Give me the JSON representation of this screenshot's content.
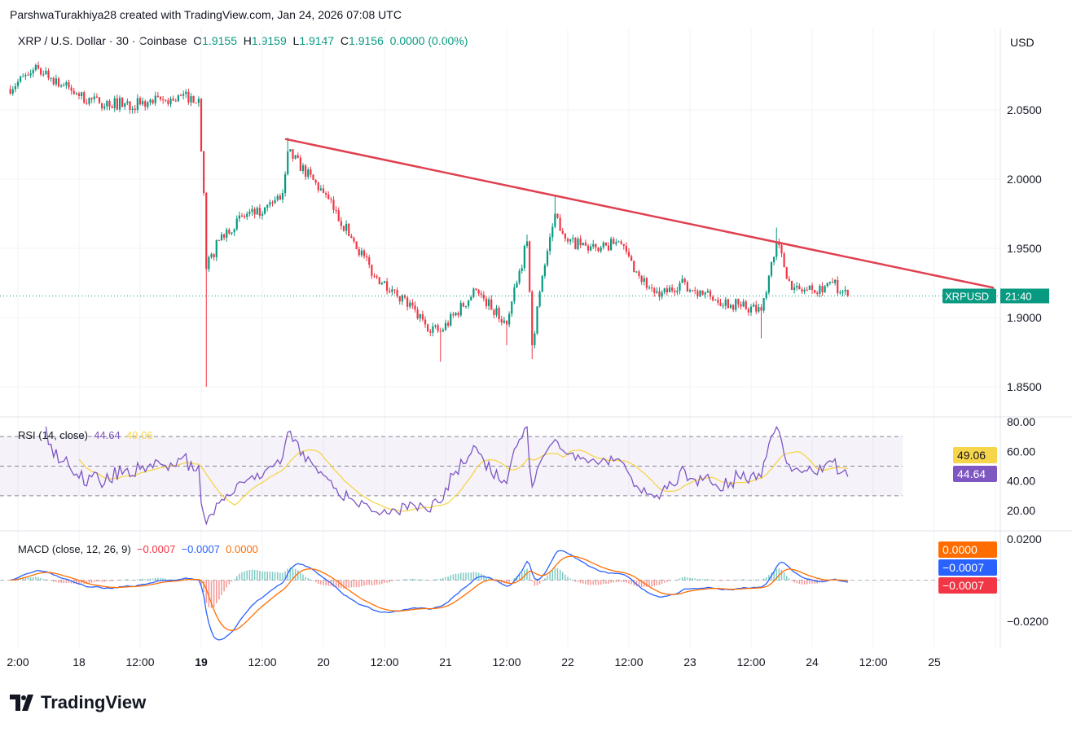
{
  "header": {
    "credit": "ParshwaTurakhiya28 created with TradingView.com, Jan 24, 2026 07:08 UTC",
    "symbol": "XRP / U.S. Dollar · 30 · Coinbase",
    "o_label": "O",
    "o": "1.9155",
    "h_label": "H",
    "h": "1.9159",
    "l_label": "L",
    "l": "1.9147",
    "c_label": "C",
    "c": "1.9156",
    "change": "0.0000 (0.00%)"
  },
  "currency": "USD",
  "colors": {
    "up": "#089981",
    "down": "#f23645",
    "trendline": "#e0404f",
    "rsi": "#7e57c2",
    "rsi_ma": "#f7d54a",
    "macd": "#2962ff",
    "signal": "#ff6d00"
  },
  "symbol_tag": "XRPUSD",
  "countdown": "21:40",
  "logo": "TradingView",
  "rsi": {
    "label": "RSI (14, close)",
    "value": "44.64",
    "ma_value": "49.06"
  },
  "macd": {
    "label": "MACD (close, 12, 26, 9)",
    "hist": "−0.0007",
    "macd": "−0.0007",
    "signal": "0.0000"
  },
  "chart_data": {
    "type": "candlestick",
    "interval": "30m",
    "last_close": 1.9156,
    "price_ticks": [
      "2.0500",
      "2.0000",
      "1.9500",
      "1.9000",
      "1.8500"
    ],
    "rsi_ticks": [
      "80.00",
      "60.00",
      "40.00",
      "20.00"
    ],
    "macd_ticks": [
      "0.0200",
      "−0.0200"
    ],
    "x_ticks": [
      {
        "label": "2:00",
        "t": "2026-01-17T12:00"
      },
      {
        "label": "18",
        "t": "2026-01-18T00:00"
      },
      {
        "label": "12:00",
        "t": "2026-01-18T12:00"
      },
      {
        "label": "19",
        "t": "2026-01-19T00:00",
        "bold": true
      },
      {
        "label": "12:00",
        "t": "2026-01-19T12:00"
      },
      {
        "label": "20",
        "t": "2026-01-20T00:00"
      },
      {
        "label": "12:00",
        "t": "2026-01-20T12:00"
      },
      {
        "label": "21",
        "t": "2026-01-21T00:00"
      },
      {
        "label": "12:00",
        "t": "2026-01-21T12:00"
      },
      {
        "label": "22",
        "t": "2026-01-22T00:00"
      },
      {
        "label": "12:00",
        "t": "2026-01-22T12:00"
      },
      {
        "label": "23",
        "t": "2026-01-23T00:00"
      },
      {
        "label": "12:00",
        "t": "2026-01-23T12:00"
      },
      {
        "label": "24",
        "t": "2026-01-24T00:00"
      },
      {
        "label": "12:00",
        "t": "2026-01-24T12:00"
      },
      {
        "label": "25",
        "t": "2026-01-25T00:00"
      }
    ],
    "price_path": [
      [
        "2026-01-17T10:00",
        2.065
      ],
      [
        "2026-01-17T14:00",
        2.075
      ],
      [
        "2026-01-17T16:00",
        2.08
      ],
      [
        "2026-01-18T00:00",
        2.06
      ],
      [
        "2026-01-18T04:00",
        2.055
      ],
      [
        "2026-01-18T12:00",
        2.054
      ],
      [
        "2026-01-18T22:00",
        2.06
      ],
      [
        "2026-01-18T23:30",
        2.058
      ],
      [
        "2026-01-19T00:00",
        2.02
      ],
      [
        "2026-01-19T00:30",
        1.99
      ],
      [
        "2026-01-19T01:00",
        1.935,
        1.85
      ],
      [
        "2026-01-19T04:00",
        1.96
      ],
      [
        "2026-01-19T09:00",
        1.975
      ],
      [
        "2026-01-19T12:00",
        1.975
      ],
      [
        "2026-01-19T16:00",
        1.99
      ],
      [
        "2026-01-19T17:00",
        2.02,
        null,
        2.03
      ],
      [
        "2026-01-20T00:00",
        1.99
      ],
      [
        "2026-01-20T06:00",
        1.955
      ],
      [
        "2026-01-20T10:00",
        1.93
      ],
      [
        "2026-01-20T14:00",
        1.92
      ],
      [
        "2026-01-20T20:00",
        1.895
      ],
      [
        "2026-01-20T23:00",
        1.89,
        1.868
      ],
      [
        "2026-01-21T06:00",
        1.92
      ],
      [
        "2026-01-21T12:00",
        1.895,
        1.88
      ],
      [
        "2026-01-21T14:00",
        1.925
      ],
      [
        "2026-01-21T16:00",
        1.955,
        null,
        1.96
      ],
      [
        "2026-01-21T17:00",
        1.88,
        1.87
      ],
      [
        "2026-01-21T19:00",
        1.93
      ],
      [
        "2026-01-21T21:30",
        1.975,
        null,
        1.988
      ],
      [
        "2026-01-22T00:00",
        1.955
      ],
      [
        "2026-01-22T06:00",
        1.948
      ],
      [
        "2026-01-22T10:00",
        1.955
      ],
      [
        "2026-01-22T14:00",
        1.93
      ],
      [
        "2026-01-22T18:00",
        1.915
      ],
      [
        "2026-01-22T22:00",
        1.925
      ],
      [
        "2026-01-23T04:00",
        1.915
      ],
      [
        "2026-01-23T10:00",
        1.908
      ],
      [
        "2026-01-23T14:00",
        1.905,
        1.885
      ],
      [
        "2026-01-23T16:00",
        1.94
      ],
      [
        "2026-01-23T17:00",
        1.955,
        null,
        1.965
      ],
      [
        "2026-01-23T20:00",
        1.92
      ],
      [
        "2026-01-24T00:00",
        1.92
      ],
      [
        "2026-01-24T04:00",
        1.925
      ],
      [
        "2026-01-24T07:00",
        1.9156
      ]
    ],
    "trendline": [
      [
        "2026-01-19T16:30",
        2.029
      ],
      [
        "2026-01-25T11:40",
        1.9215
      ]
    ]
  }
}
